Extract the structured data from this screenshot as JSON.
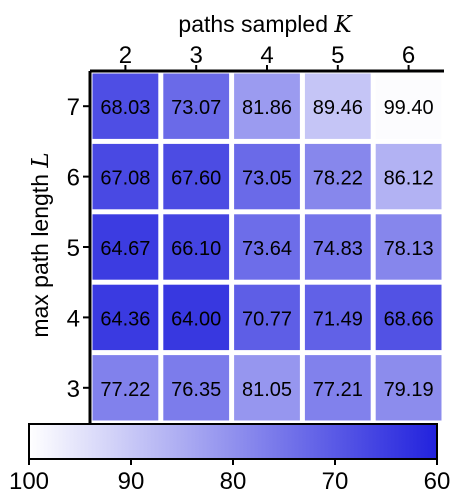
{
  "chart_data": {
    "type": "heatmap",
    "xlabel": "paths sampled",
    "xlabel_symbol": "K",
    "ylabel": "max path length",
    "ylabel_symbol": "L",
    "x_ticks": [
      "2",
      "3",
      "4",
      "5",
      "6"
    ],
    "y_ticks": [
      "7",
      "6",
      "5",
      "4",
      "3"
    ],
    "values": [
      [
        68.03,
        73.07,
        81.86,
        89.46,
        99.4
      ],
      [
        67.08,
        67.6,
        73.05,
        78.22,
        86.12
      ],
      [
        64.67,
        66.1,
        73.64,
        74.83,
        78.13
      ],
      [
        64.36,
        64.0,
        70.77,
        71.49,
        68.66
      ],
      [
        77.22,
        76.35,
        81.05,
        77.21,
        79.19
      ]
    ],
    "colorbar": {
      "min": 60,
      "max": 100,
      "reversed": true,
      "ticks": [
        "100",
        "90",
        "80",
        "70",
        "60"
      ],
      "low_color": "#ffffff",
      "high_color": "#2222dd"
    }
  }
}
